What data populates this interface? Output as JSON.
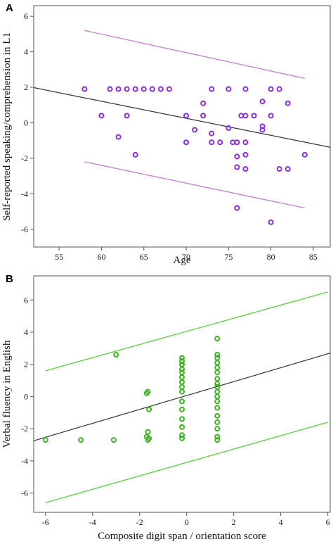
{
  "chart_data": [
    {
      "panel_label": "A",
      "type": "scatter",
      "title": "",
      "xlabel": "Age",
      "ylabel": "Self-reported speaking/comprehension in L1",
      "xlim": [
        52,
        87
      ],
      "ylim": [
        -7,
        6.6
      ],
      "xticks": [
        55,
        60,
        65,
        70,
        75,
        80,
        85
      ],
      "yticks": [
        -6,
        -4,
        -2,
        0,
        2,
        4,
        6
      ],
      "marker_color": "#8a2be2",
      "fit_color": "#333333",
      "band_color": "#c77dd6",
      "grid": false,
      "legend": "none",
      "points": [
        [
          58,
          1.9
        ],
        [
          60,
          0.4
        ],
        [
          61,
          1.9
        ],
        [
          62,
          1.9
        ],
        [
          62,
          -0.8
        ],
        [
          63,
          1.9
        ],
        [
          63,
          0.4
        ],
        [
          64,
          1.9
        ],
        [
          64,
          -1.8
        ],
        [
          65,
          1.9
        ],
        [
          66,
          1.9
        ],
        [
          67,
          1.9
        ],
        [
          68,
          1.9
        ],
        [
          70,
          0.4
        ],
        [
          70,
          -1.1
        ],
        [
          71,
          -0.4
        ],
        [
          72,
          1.1
        ],
        [
          72,
          0.4
        ],
        [
          73,
          1.9
        ],
        [
          73,
          -0.6
        ],
        [
          73,
          -1.1
        ],
        [
          74,
          -1.1
        ],
        [
          75,
          1.9
        ],
        [
          75,
          -0.3
        ],
        [
          75.5,
          -1.1
        ],
        [
          76,
          -1.1
        ],
        [
          76,
          -1.9
        ],
        [
          76,
          -2.5
        ],
        [
          76,
          -4.8
        ],
        [
          76.5,
          0.4
        ],
        [
          77,
          1.9
        ],
        [
          77,
          0.4
        ],
        [
          77,
          -1.1
        ],
        [
          77,
          -1.8
        ],
        [
          77,
          -2.6
        ],
        [
          78,
          0.4
        ],
        [
          79,
          1.2
        ],
        [
          79,
          -0.2
        ],
        [
          79,
          -0.4
        ],
        [
          80,
          1.9
        ],
        [
          80,
          0.4
        ],
        [
          80,
          -5.6
        ],
        [
          81,
          1.9
        ],
        [
          81,
          -2.6
        ],
        [
          82,
          1.1
        ],
        [
          82,
          -2.6
        ],
        [
          84,
          -1.8
        ]
      ],
      "fit_line": [
        [
          52,
          1.98
        ],
        [
          87,
          -1.38
        ]
      ],
      "band_upper": [
        [
          58,
          5.2
        ],
        [
          84,
          2.5
        ]
      ],
      "band_lower": [
        [
          58,
          -2.2
        ],
        [
          84,
          -4.8
        ]
      ]
    },
    {
      "panel_label": "B",
      "type": "scatter",
      "title": "",
      "xlabel": "Composite digit span / orientation score",
      "ylabel": "Verbal fluency in English",
      "xlim": [
        -6.5,
        6.1
      ],
      "ylim": [
        -7.2,
        7.5
      ],
      "xticks": [
        -6,
        -4,
        -2,
        0,
        2,
        4,
        6
      ],
      "yticks": [
        -6,
        -4,
        -2,
        0,
        2,
        4,
        6
      ],
      "marker_color": "#3cb31e",
      "fit_color": "#333333",
      "band_color": "#55d13c",
      "grid": false,
      "legend": "none",
      "points": [
        [
          -6,
          -2.7
        ],
        [
          -4.5,
          -2.7
        ],
        [
          -3.1,
          -2.7
        ],
        [
          -3,
          2.6
        ],
        [
          -1.7,
          0.2
        ],
        [
          -1.65,
          0.3
        ],
        [
          -1.6,
          -0.8
        ],
        [
          -1.65,
          -2.2
        ],
        [
          -1.7,
          -2.5
        ],
        [
          -1.65,
          -2.7
        ],
        [
          -1.6,
          -2.6
        ],
        [
          -0.2,
          2.4
        ],
        [
          -0.2,
          2.2
        ],
        [
          -0.2,
          2.0
        ],
        [
          -0.2,
          1.7
        ],
        [
          -0.2,
          1.5
        ],
        [
          -0.2,
          1.2
        ],
        [
          -0.2,
          0.9
        ],
        [
          -0.2,
          0.6
        ],
        [
          -0.2,
          0.3
        ],
        [
          -0.2,
          -0.3
        ],
        [
          -0.2,
          -0.8
        ],
        [
          -0.2,
          -1.4
        ],
        [
          -0.2,
          -1.9
        ],
        [
          -0.2,
          -2.4
        ],
        [
          -0.2,
          -2.6
        ],
        [
          1.3,
          3.6
        ],
        [
          1.3,
          2.6
        ],
        [
          1.3,
          2.4
        ],
        [
          1.3,
          2.1
        ],
        [
          1.3,
          1.8
        ],
        [
          1.3,
          1.5
        ],
        [
          1.3,
          1.1
        ],
        [
          1.3,
          0.8
        ],
        [
          1.3,
          0.6
        ],
        [
          1.3,
          0.3
        ],
        [
          1.3,
          0.0
        ],
        [
          1.3,
          -0.3
        ],
        [
          1.3,
          -0.7
        ],
        [
          1.3,
          -1.2
        ],
        [
          1.3,
          -1.6
        ],
        [
          1.3,
          -2.0
        ],
        [
          1.3,
          -2.5
        ],
        [
          1.3,
          -2.7
        ]
      ],
      "fit_line": [
        [
          -6.5,
          -2.75
        ],
        [
          6.1,
          2.7
        ]
      ],
      "band_upper": [
        [
          -6,
          1.6
        ],
        [
          6,
          6.5
        ]
      ],
      "band_lower": [
        [
          -6,
          -6.6
        ],
        [
          6,
          -1.6
        ]
      ]
    }
  ]
}
